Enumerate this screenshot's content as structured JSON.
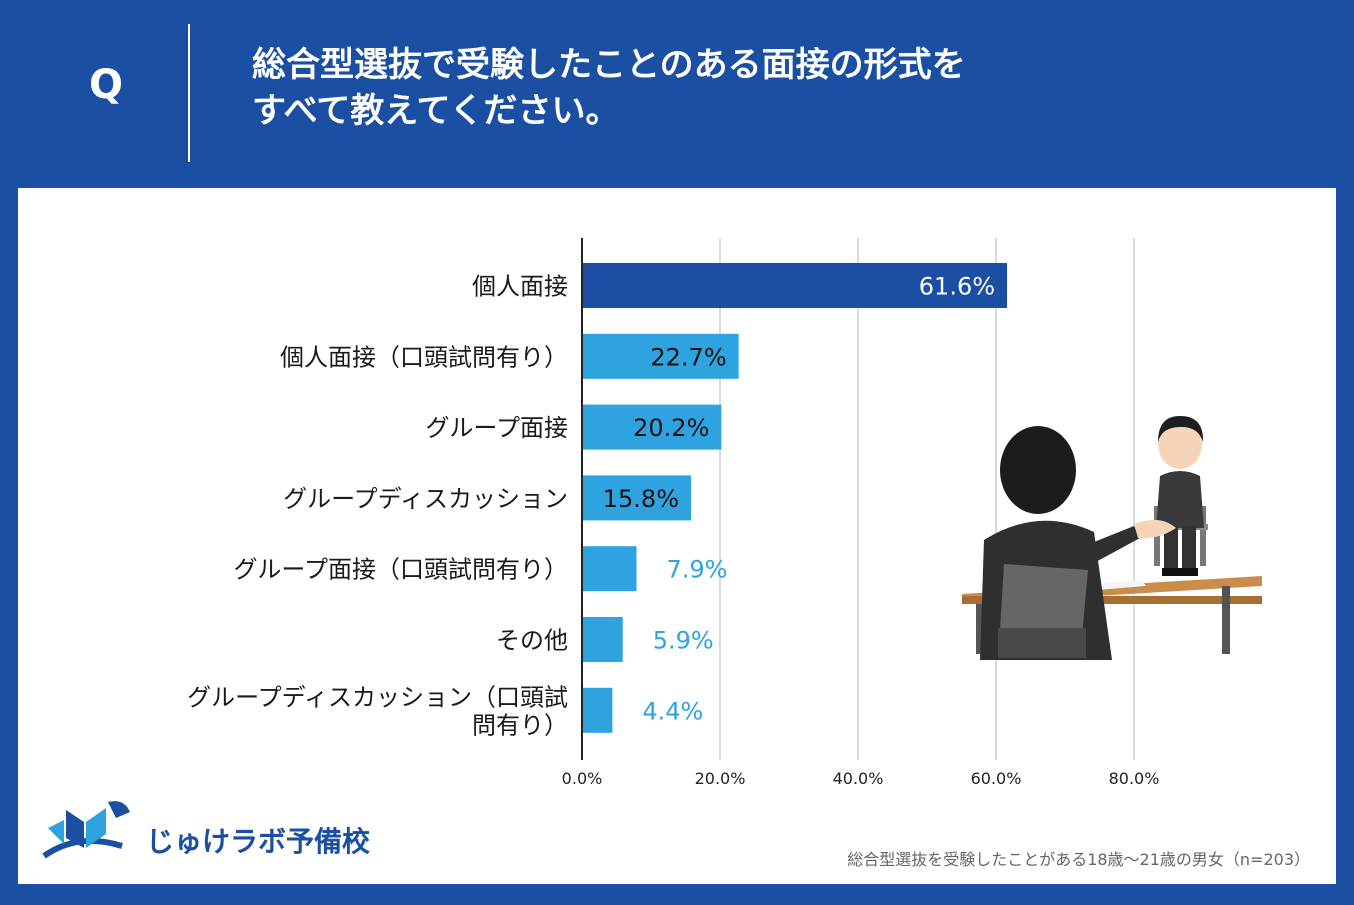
{
  "header": {
    "q_mark": "Q",
    "title_line1": "総合型選抜で受験したことのある面接の形式を",
    "title_line2": "すべて教えてください。"
  },
  "chart_data": {
    "type": "bar",
    "orientation": "horizontal",
    "categories": [
      "個人面接",
      "個人面接（口頭試問有り）",
      "グループ面接",
      "グループディスカッション",
      "グループ面接（口頭試問有り）",
      "その他",
      "グループディスカッション（口頭試問有り）"
    ],
    "category_lines": [
      [
        "個人面接"
      ],
      [
        "個人面接（口頭試問有り）"
      ],
      [
        "グループ面接"
      ],
      [
        "グループディスカッション"
      ],
      [
        "グループ面接（口頭試問有り）"
      ],
      [
        "その他"
      ],
      [
        "グループディスカッション（口頭試",
        "問有り）"
      ]
    ],
    "values": [
      61.6,
      22.7,
      20.2,
      15.8,
      7.9,
      5.9,
      4.4
    ],
    "value_labels": [
      "61.6%",
      "22.7%",
      "20.2%",
      "15.8%",
      "7.9%",
      "5.9%",
      "4.4%"
    ],
    "bar_colors": [
      "#1a4fa3",
      "#2ea3e0",
      "#2ea3e0",
      "#2ea3e0",
      "#2ea3e0",
      "#2ea3e0",
      "#2ea3e0"
    ],
    "label_colors": [
      "#ffffff",
      "#111111",
      "#111111",
      "#111111",
      "#2ea3e0",
      "#2ea3e0",
      "#2ea3e0"
    ],
    "label_inside": [
      true,
      true,
      true,
      true,
      false,
      false,
      false
    ],
    "xticks": [
      0,
      20,
      40,
      60,
      80
    ],
    "xtick_labels": [
      "0.0%",
      "20.0%",
      "40.0%",
      "60.0%",
      "80.0%"
    ],
    "xlim": [
      0,
      80
    ],
    "grid": true,
    "title": "",
    "xlabel": "",
    "ylabel": ""
  },
  "logo": {
    "text": "じゅけラボ予備校"
  },
  "footnote": "総合型選抜を受験したことがある18歳～21歳の男女（n=203）"
}
